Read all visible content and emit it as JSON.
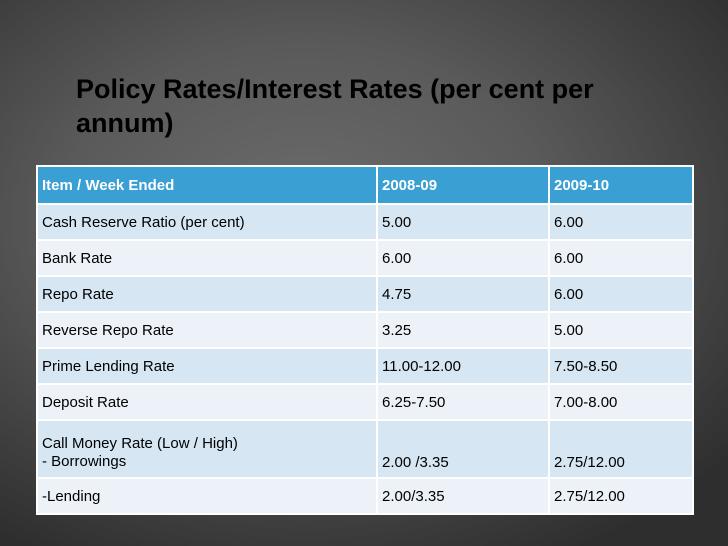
{
  "title": "Policy Rates/Interest Rates (per cent per annum)",
  "table": {
    "headers": [
      "Item / Week Ended",
      "2008-09",
      "2009-10"
    ],
    "rows": [
      {
        "item": "Cash Reserve Ratio (per cent)",
        "y2008_09": "5.00",
        "y2009_10": "6.00"
      },
      {
        "item": "Bank Rate",
        "y2008_09": "6.00",
        "y2009_10": "6.00"
      },
      {
        "item": "Repo Rate",
        "y2008_09": "4.75",
        "y2009_10": "6.00"
      },
      {
        "item": "Reverse Repo Rate",
        "y2008_09": "3.25",
        "y2009_10": "5.00"
      },
      {
        "item": "Prime Lending Rate",
        "y2008_09": "11.00-12.00",
        "y2009_10": "7.50-8.50"
      },
      {
        "item": "Deposit Rate",
        "y2008_09": "6.25-7.50",
        "y2009_10": "7.00-8.00"
      },
      {
        "item_line1": "Call Money Rate (Low / High)",
        "item_line2": "- Borrowings",
        "y2008_09": "2.00 /3.35",
        "y2009_10": "2.75/12.00"
      },
      {
        "item": "-Lending",
        "y2008_09": "2.00/3.35",
        "y2009_10": "2.75/12.00"
      }
    ]
  },
  "colors": {
    "header_background": "#3a9fd3",
    "row_band_dark": "#d6e6f2",
    "row_band_light": "#ecf2f8",
    "slide_background": "#5a5a5a"
  }
}
